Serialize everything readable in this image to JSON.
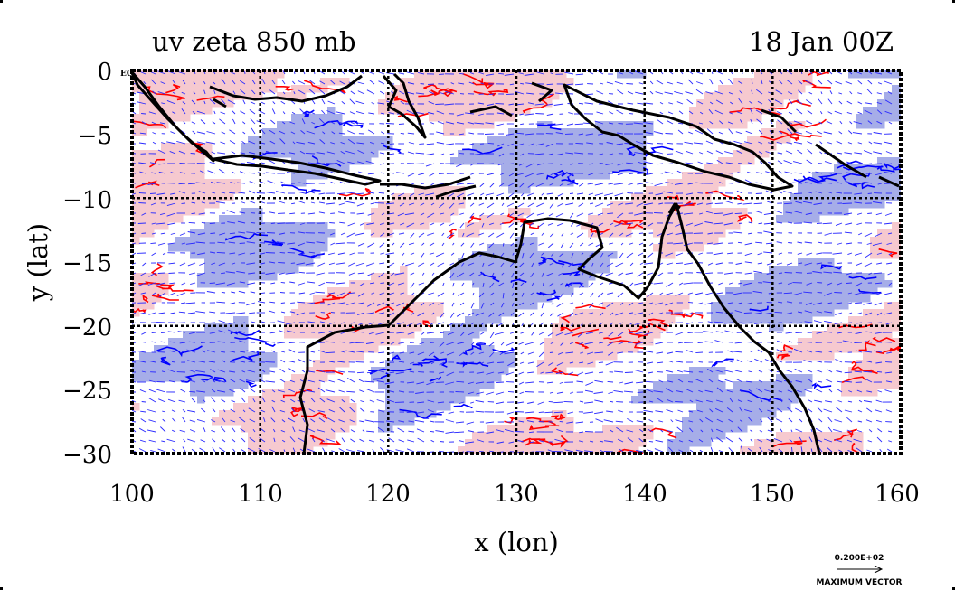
{
  "header": {
    "title_left": "uv zeta 850 mb",
    "title_right": "18 Jan 00Z"
  },
  "map": {
    "xlabel": "x (lon)",
    "ylabel": "y (lat)",
    "x_ticks": [
      "100",
      "110",
      "120",
      "130",
      "140",
      "150",
      "160"
    ],
    "y_ticks": [
      "0",
      "−5",
      "−10",
      "−15",
      "−20",
      "−25",
      "−30"
    ],
    "top_left_tag": "EQ",
    "lon_range": [
      100,
      160
    ],
    "lat_range": [
      -30,
      0
    ],
    "grid_interval_deg": 10,
    "fields": [
      "uv",
      "zeta"
    ],
    "level_mb": 850,
    "colors": {
      "positive_shade": "#f6c9cf",
      "negative_shade": "#a6ade8",
      "positive_contour": "#ff0000",
      "negative_contour": "#0000ff",
      "vector": "#2a2aff",
      "coast": "#000000",
      "background": "#ffffff"
    }
  },
  "legend": {
    "vector_value": "0.200E+02",
    "vector_caption": "MAXIMUM VECTOR"
  }
}
